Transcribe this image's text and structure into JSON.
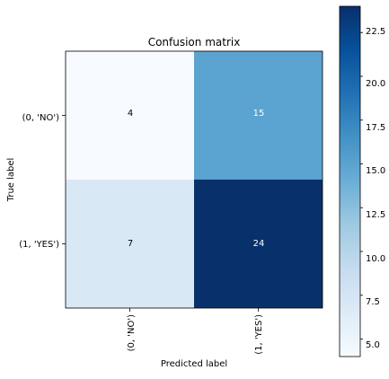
{
  "chart_data": {
    "type": "heatmap",
    "title": "Confusion matrix",
    "xlabel": "Predicted label",
    "ylabel": "True label",
    "x_tick_labels": [
      "(0, 'NO')",
      "(1, 'YES')"
    ],
    "y_tick_labels": [
      "(0, 'NO')",
      "(1, 'YES')"
    ],
    "matrix": [
      [
        4,
        15
      ],
      [
        7,
        24
      ]
    ],
    "colormap": "Blues",
    "colorbar": {
      "min": 4,
      "max": 24,
      "ticks": [
        5.0,
        7.5,
        10.0,
        12.5,
        15.0,
        17.5,
        20.0,
        22.5
      ],
      "tick_labels": [
        "5.0",
        "7.5",
        "10.0",
        "12.5",
        "15.0",
        "17.5",
        "20.0",
        "22.5"
      ]
    },
    "cell_text_threshold": 14
  }
}
